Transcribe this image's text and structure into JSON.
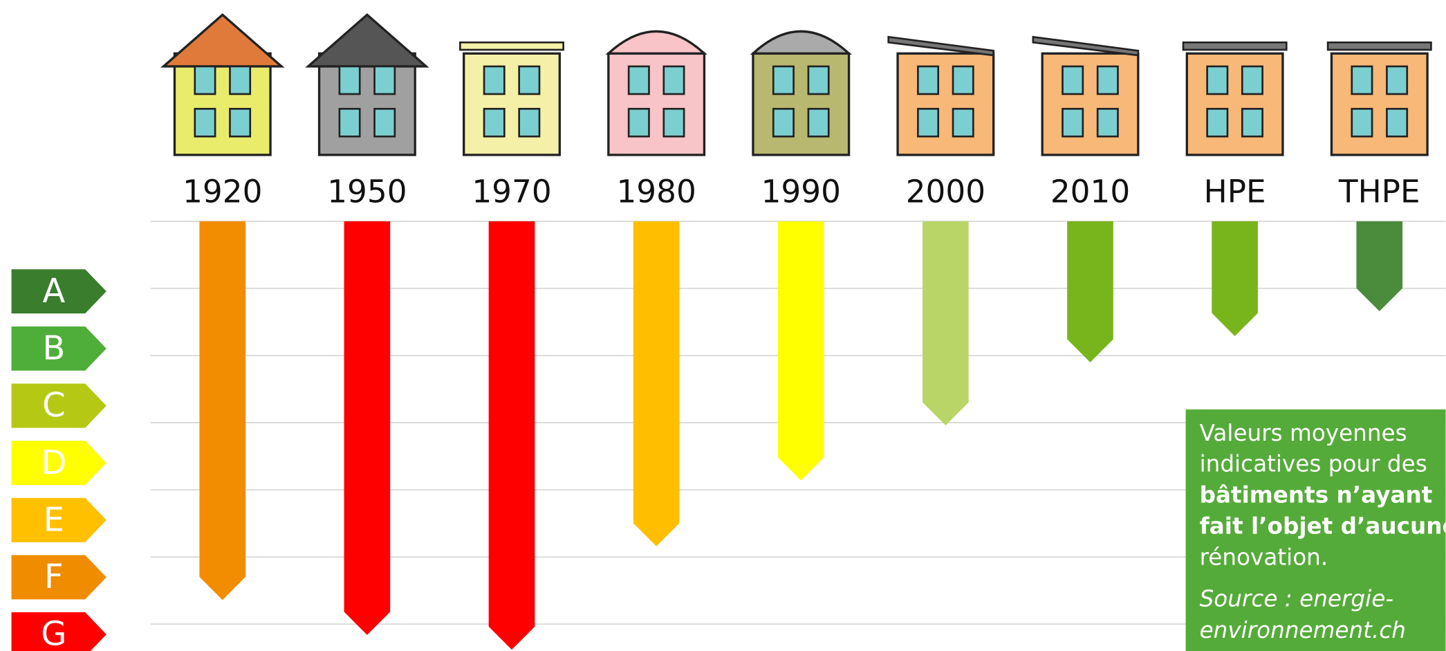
{
  "chart_data": {
    "type": "bar",
    "categories": [
      "1920",
      "1950",
      "1970",
      "1980",
      "1990",
      "2000",
      "2010",
      "HPE",
      "THPE"
    ],
    "values": [
      5.64,
      6.16,
      6.38,
      4.84,
      3.86,
      3.04,
      2.1,
      1.71,
      1.34
    ],
    "colors": [
      "#f28c00",
      "#ff0000",
      "#ff0000",
      "#ffbf00",
      "#ffff00",
      "#b9d567",
      "#78b51c",
      "#78b51c",
      "#4a8c3c"
    ],
    "ylim": [
      0,
      6.4
    ],
    "gridlines": [
      0,
      1,
      2,
      3,
      4,
      5,
      6
    ],
    "y_reversed": true,
    "classes": [
      {
        "label": "A",
        "color": "#3a7d2c"
      },
      {
        "label": "B",
        "color": "#4fae3a"
      },
      {
        "label": "C",
        "color": "#b5c914"
      },
      {
        "label": "D",
        "color": "#ffff00"
      },
      {
        "label": "E",
        "color": "#ffc000"
      },
      {
        "label": "F",
        "color": "#f08c00"
      },
      {
        "label": "G",
        "color": "#ff0000"
      }
    ],
    "note": {
      "color": "#55ab3a",
      "lines": [
        {
          "text": "Valeurs moyennes",
          "style": "normal"
        },
        {
          "text": "indicatives pour des",
          "style": "normal"
        },
        {
          "text": "bâtiments n’ayant",
          "style": "bold"
        },
        {
          "text": "fait l’objet d’aucune",
          "style": "bold"
        },
        {
          "text": "rénovation.",
          "style": "normal"
        },
        {
          "text": "Source : energie-",
          "style": "italic"
        },
        {
          "text": "environnement.ch",
          "style": "italic"
        }
      ]
    }
  }
}
